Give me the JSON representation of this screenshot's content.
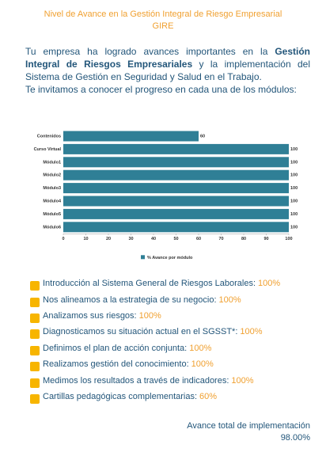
{
  "header": {
    "title": [
      "Nivel de Avance en la Gestión Integral de Riesgo Empresarial",
      "GIRE"
    ]
  },
  "intro": {
    "parts": [
      "Tu empresa ha logrado avances importantes en la ",
      "Gestión Integral de Riesgos Empresariales",
      " y la implementación del Sistema de Gestión en Seguridad y Salud en el Trabajo."
    ],
    "invite": "Te invitamos a conocer el progreso en cada una de los módulos:"
  },
  "chart_data": {
    "type": "hbar",
    "categories": [
      "Contenidos",
      "Curso Virtual",
      "Módulo1",
      "Módulo2",
      "Módulo3",
      "Módulo4",
      "Módulo5",
      "Módulo6"
    ],
    "series": [
      {
        "name": "% Avance por módulo",
        "color": "#2f7f96",
        "values": [
          60,
          100,
          100,
          100,
          100,
          100,
          100,
          100
        ]
      }
    ],
    "xlim": [
      0,
      100
    ],
    "xticks": [
      0,
      10,
      20,
      30,
      40,
      50,
      60,
      70,
      80,
      90,
      100
    ],
    "legend": "bottom"
  },
  "modules": [
    {
      "text": "Introducción al Sistema General de Riesgos Laborales:",
      "value": "100%"
    },
    {
      "text": "Nos alineamos a la estrategia de su negocio:",
      "value": "100%"
    },
    {
      "text": "Analizamos sus riesgos:",
      "value": "100%"
    },
    {
      "text": "Diagnosticamos su situación actual en el SGSST*:",
      "value": "100%"
    },
    {
      "text": "Definimos el plan de acción conjunta:",
      "value": "100%"
    },
    {
      "text": "Realizamos gestión del conocimiento:",
      "value": "100%"
    },
    {
      "text": "Medimos los resultados a través de indicadores:",
      "value": "100%"
    },
    {
      "text": "Cartillas pedagógicas complementarias:",
      "value": "60%"
    }
  ],
  "total": {
    "label": "Avance total de implementación",
    "value": "98.00%"
  }
}
